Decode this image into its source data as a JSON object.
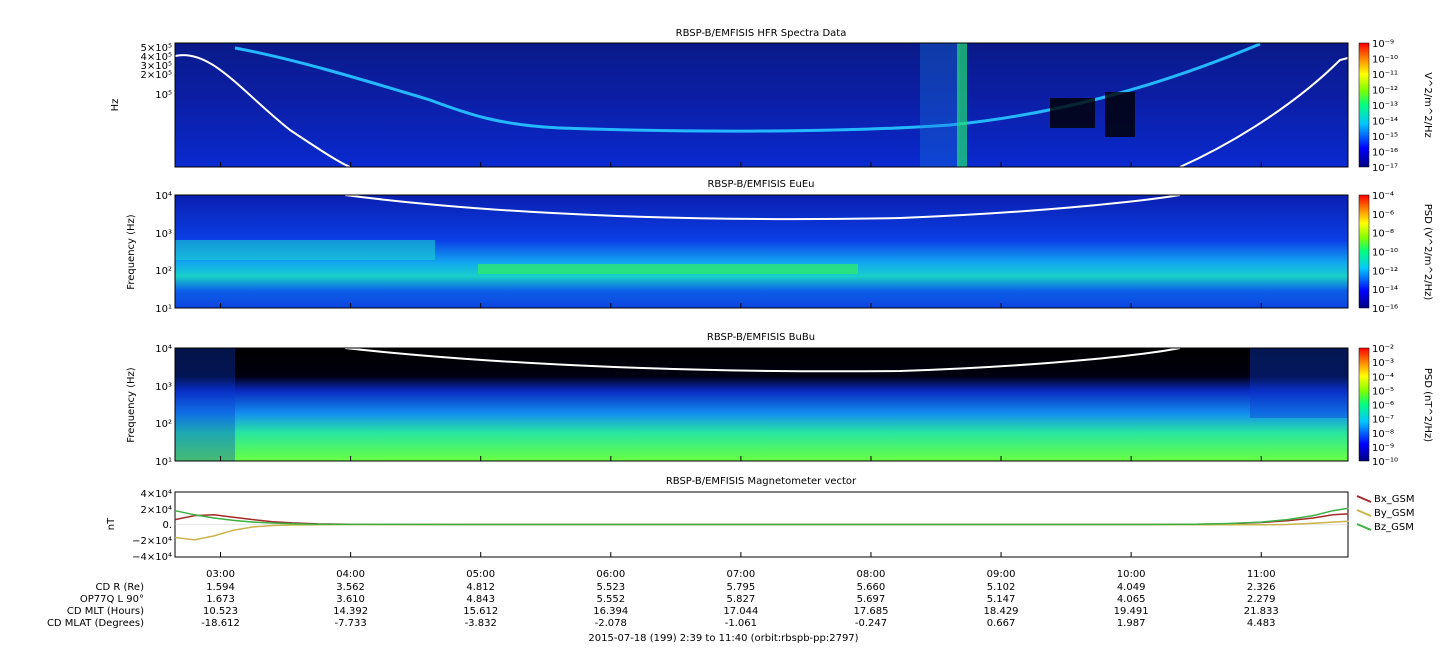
{
  "chart_data": [
    {
      "type": "heatmap",
      "title": "RBSP-B/EMFISIS  HFR Spectra Data",
      "ylabel": "Hz",
      "yticks": [
        "5×10⁵",
        "4×10⁵",
        "3×10⁵",
        "2×10⁵",
        "10⁵"
      ],
      "colorbar_label": "V^2/m^2/Hz",
      "colorbar_ticks": [
        "10⁻⁹",
        "10⁻¹⁰",
        "10⁻¹¹",
        "10⁻¹²",
        "10⁻¹³",
        "10⁻¹⁴",
        "10⁻¹⁵",
        "10⁻¹⁶",
        "10⁻¹⁷"
      ],
      "overlay": "white cyclotron-type curve near both ends"
    },
    {
      "type": "heatmap",
      "title": "RBSP-B/EMFISIS  EuEu",
      "ylabel": "Frequency (Hz)",
      "yticks": [
        "10⁴",
        "10³",
        "10²",
        "10¹"
      ],
      "colorbar_label": "PSD (V^2/m^2/Hz)",
      "colorbar_ticks": [
        "10⁻⁴",
        "10⁻⁶",
        "10⁻⁸",
        "10⁻¹⁰",
        "10⁻¹²",
        "10⁻¹⁴",
        "10⁻¹⁶"
      ]
    },
    {
      "type": "heatmap",
      "title": "RBSP-B/EMFISIS  BuBu",
      "ylabel": "Frequency (Hz)",
      "yticks": [
        "10⁴",
        "10³",
        "10²",
        "10¹"
      ],
      "colorbar_label": "PSD (nT^2/Hz)",
      "colorbar_ticks": [
        "10⁻²",
        "10⁻³",
        "10⁻⁴",
        "10⁻⁵",
        "10⁻⁶",
        "10⁻⁷",
        "10⁻⁸",
        "10⁻⁹",
        "10⁻¹⁰"
      ]
    },
    {
      "type": "line",
      "title": "RBSP-B/EMFISIS  Magnetometer vector",
      "ylabel": "nT",
      "yticks": [
        "4×10⁴",
        "2×10⁴",
        "0.",
        "−2×10⁴",
        "−4×10⁴"
      ],
      "ylim": [
        -40000,
        40000
      ],
      "x_hours": [
        2.65,
        2.8,
        2.95,
        3.1,
        3.25,
        3.4,
        3.55,
        3.75,
        4.0,
        5.0,
        6.0,
        7.0,
        8.0,
        9.0,
        10.0,
        10.5,
        10.75,
        11.0,
        11.2,
        11.4,
        11.55,
        11.67
      ],
      "series": [
        {
          "name": "Bx_GSM",
          "color": "#a52a2a",
          "values": [
            6000,
            11000,
            12000,
            9000,
            6000,
            3500,
            2000,
            800,
            200,
            0,
            0,
            0,
            0,
            0,
            0,
            300,
            1000,
            2500,
            4500,
            8000,
            12000,
            13000
          ]
        },
        {
          "name": "By_GSM",
          "color": "#c8b44a",
          "values": [
            -16000,
            -19000,
            -14000,
            -7000,
            -3000,
            -1200,
            -600,
            -200,
            0,
            0,
            0,
            0,
            0,
            0,
            0,
            -200,
            -300,
            -400,
            0,
            1500,
            3000,
            4000
          ]
        },
        {
          "name": "Bz_GSM",
          "color": "#3cb043",
          "values": [
            17000,
            12000,
            8000,
            5000,
            3000,
            1800,
            900,
            300,
            100,
            0,
            0,
            0,
            0,
            0,
            0,
            300,
            1200,
            3000,
            6000,
            11000,
            17000,
            20000
          ]
        }
      ]
    }
  ],
  "time_ticks": [
    "03:00",
    "04:00",
    "05:00",
    "06:00",
    "07:00",
    "08:00",
    "09:00",
    "10:00",
    "11:00"
  ],
  "ephemeris": [
    {
      "label": "CD R (Re)",
      "values": [
        "1.594",
        "3.562",
        "4.812",
        "5.523",
        "5.795",
        "5.660",
        "5.102",
        "4.049",
        "2.326"
      ]
    },
    {
      "label": "OP77Q L 90°",
      "values": [
        "1.673",
        "3.610",
        "4.843",
        "5.552",
        "5.827",
        "5.697",
        "5.147",
        "4.065",
        "2.279"
      ]
    },
    {
      "label": "CD MLT (Hours)",
      "values": [
        "10.523",
        "14.392",
        "15.612",
        "16.394",
        "17.044",
        "17.685",
        "18.429",
        "19.491",
        "21.833"
      ]
    },
    {
      "label": "CD MLAT (Degrees)",
      "values": [
        "-18.612",
        "-7.733",
        "-3.832",
        "-2.078",
        "-1.061",
        "-0.247",
        "0.667",
        "1.987",
        "4.483"
      ]
    }
  ],
  "footer": "2015-07-18 (199) 2:39 to 11:40 (orbit:rbspb-pp:2797)"
}
